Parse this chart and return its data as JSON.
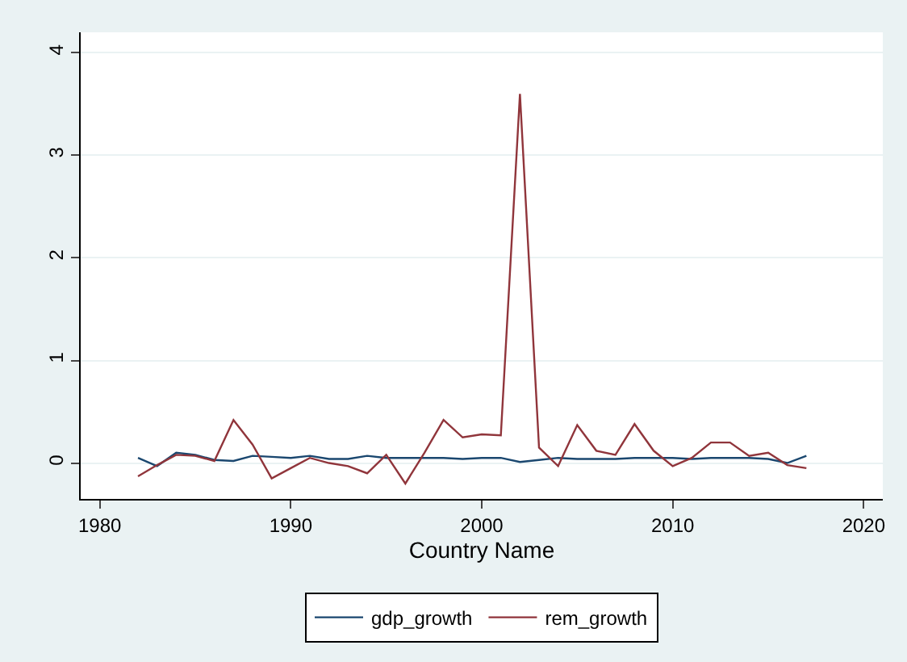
{
  "chart_data": {
    "type": "line",
    "xlabel": "Country Name",
    "x": [
      1982,
      1983,
      1984,
      1985,
      1986,
      1987,
      1988,
      1989,
      1990,
      1991,
      1992,
      1993,
      1994,
      1995,
      1996,
      1997,
      1998,
      1999,
      2000,
      2001,
      2002,
      2003,
      2004,
      2005,
      2006,
      2007,
      2008,
      2009,
      2010,
      2011,
      2012,
      2013,
      2014,
      2015,
      2016,
      2017
    ],
    "series": [
      {
        "name": "gdp_growth",
        "color": "#1a476f",
        "values": [
          0.05,
          -0.03,
          0.1,
          0.08,
          0.03,
          0.02,
          0.07,
          0.06,
          0.05,
          0.07,
          0.04,
          0.04,
          0.07,
          0.05,
          0.05,
          0.05,
          0.05,
          0.04,
          0.05,
          0.05,
          0.01,
          0.03,
          0.05,
          0.04,
          0.04,
          0.04,
          0.05,
          0.05,
          0.05,
          0.04,
          0.05,
          0.05,
          0.05,
          0.04,
          0.0,
          0.07
        ]
      },
      {
        "name": "rem_growth",
        "color": "#90353b",
        "values": [
          -0.13,
          -0.02,
          0.08,
          0.07,
          0.02,
          0.42,
          0.18,
          -0.15,
          -0.05,
          0.05,
          0.0,
          -0.03,
          -0.1,
          0.08,
          -0.2,
          0.1,
          0.42,
          0.25,
          0.28,
          0.27,
          3.6,
          0.15,
          -0.03,
          0.37,
          0.12,
          0.08,
          0.38,
          0.12,
          -0.03,
          0.05,
          0.2,
          0.2,
          0.07,
          0.1,
          -0.02,
          -0.05
        ]
      }
    ],
    "xlim": [
      1979,
      2021
    ],
    "xticks": [
      1980,
      1990,
      2000,
      2010,
      2020
    ],
    "ylim": [
      -0.35,
      4.2
    ],
    "yticks": [
      0,
      1,
      2,
      3,
      4
    ],
    "grid": "y",
    "legend": "bottom",
    "line_style": "solid",
    "marker": "none"
  }
}
